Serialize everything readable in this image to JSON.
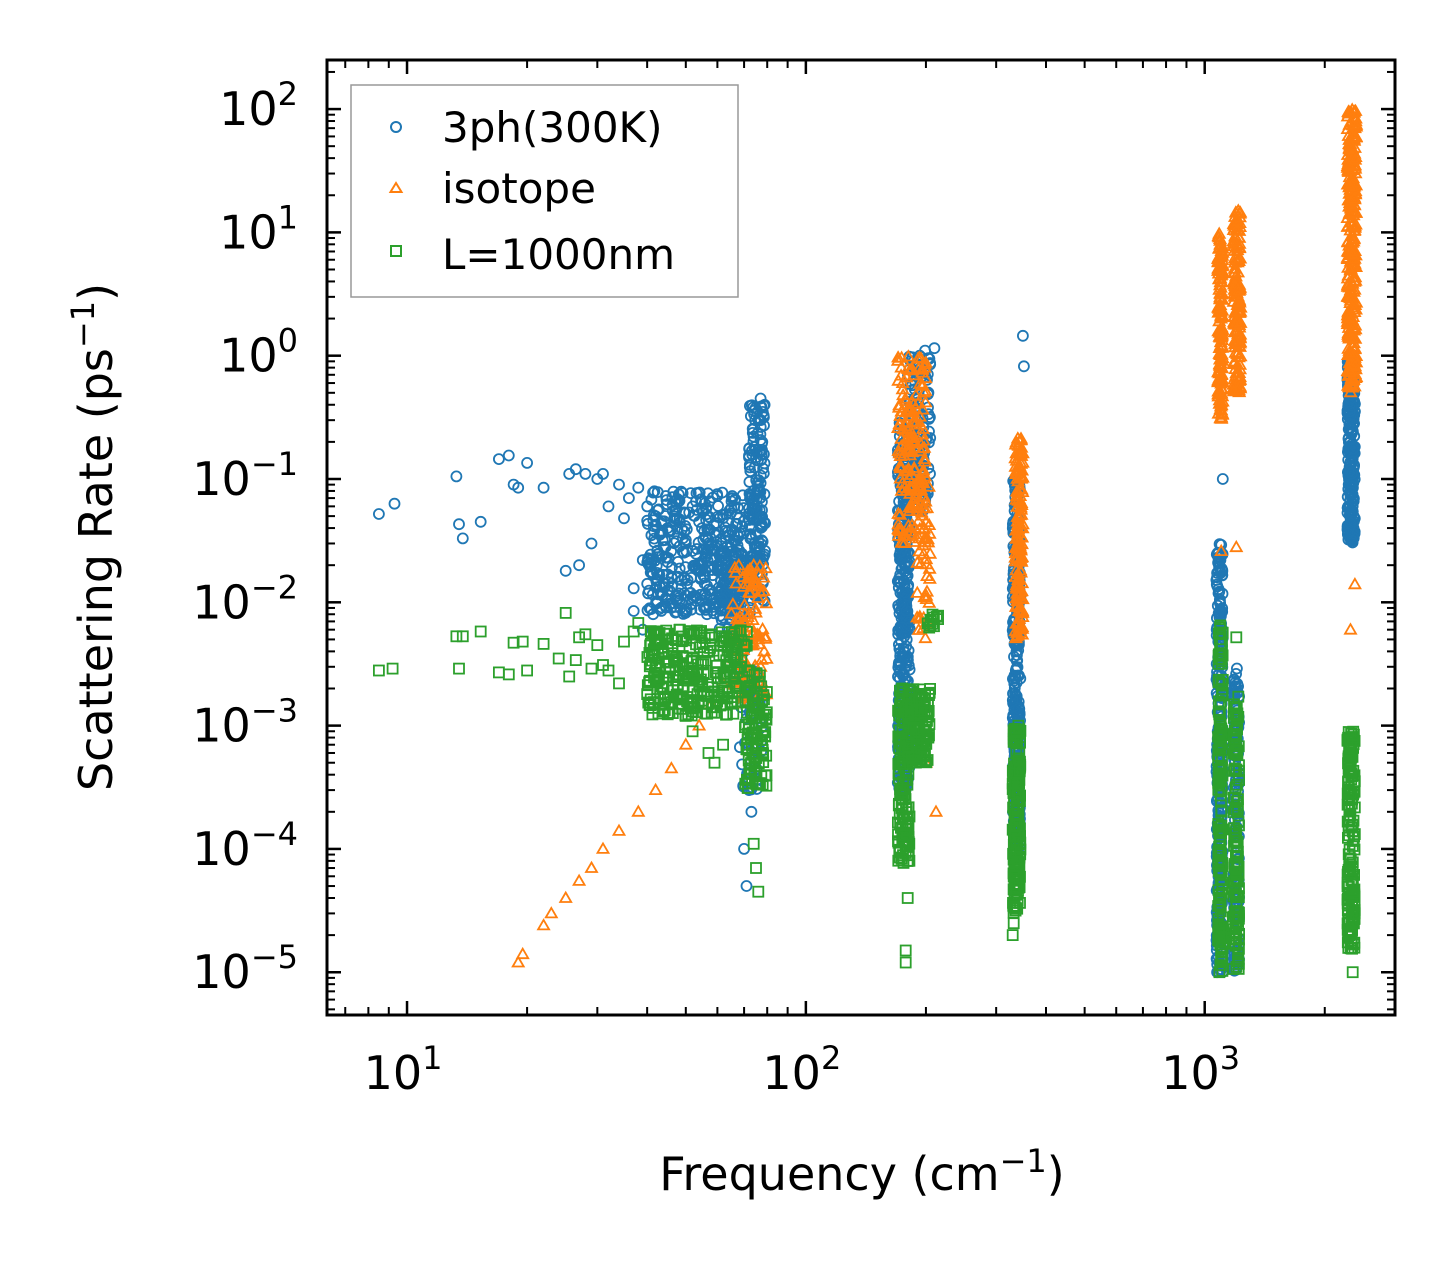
{
  "chart_data": {
    "type": "scatter",
    "xscale": "log",
    "yscale": "log",
    "xlim": [
      6.3,
      3000
    ],
    "ylim": [
      4.5e-06,
      250
    ],
    "xlabel": "Frequency (cm",
    "xlabel_sup": "−1",
    "xlabel_end": ")",
    "ylabel": "Scattering Rate (ps",
    "ylabel_sup": "−1",
    "ylabel_end": ")",
    "x_ticks": [
      {
        "value": 10,
        "base": "10",
        "exp": "1"
      },
      {
        "value": 100,
        "base": "10",
        "exp": "2"
      },
      {
        "value": 1000,
        "base": "10",
        "exp": "3"
      }
    ],
    "y_ticks": [
      {
        "value": 100,
        "base": "10",
        "exp": "2"
      },
      {
        "value": 10,
        "base": "10",
        "exp": "1"
      },
      {
        "value": 1,
        "base": "10",
        "exp": "0"
      },
      {
        "value": 0.1,
        "base": "10",
        "exp": "−1"
      },
      {
        "value": 0.01,
        "base": "10",
        "exp": "−2"
      },
      {
        "value": 0.001,
        "base": "10",
        "exp": "−3"
      },
      {
        "value": 0.0001,
        "base": "10",
        "exp": "−4"
      },
      {
        "value": 1e-05,
        "base": "10",
        "exp": "−5"
      }
    ],
    "legend_position": "top-left",
    "series": [
      {
        "name": "3ph(300K)",
        "marker": "circle",
        "color": "#1f77b4",
        "points": [
          [
            8.5,
            0.052
          ],
          [
            9.3,
            0.063
          ],
          [
            13.3,
            0.105
          ],
          [
            13.5,
            0.043
          ],
          [
            13.8,
            0.033
          ],
          [
            15.3,
            0.045
          ],
          [
            17,
            0.145
          ],
          [
            18,
            0.155
          ],
          [
            18.5,
            0.09
          ],
          [
            19,
            0.085
          ],
          [
            20,
            0.135
          ],
          [
            22,
            0.085
          ],
          [
            25,
            0.018
          ],
          [
            25.5,
            0.11
          ],
          [
            26.5,
            0.12
          ],
          [
            27,
            0.02
          ],
          [
            28,
            0.11
          ],
          [
            29,
            0.03
          ],
          [
            30,
            0.1
          ],
          [
            31,
            0.11
          ],
          [
            32,
            0.06
          ],
          [
            34,
            0.09
          ],
          [
            35,
            0.048
          ],
          [
            36,
            0.07
          ],
          [
            37,
            0.013
          ],
          [
            38,
            0.085
          ],
          [
            39,
            0.022
          ],
          [
            40,
            0.06
          ],
          [
            41,
            0.035
          ],
          [
            42,
            0.05
          ],
          [
            44,
            0.028
          ],
          [
            45,
            0.04
          ],
          [
            47,
            0.055
          ],
          [
            48,
            0.075
          ],
          [
            50,
            0.032
          ],
          [
            52,
            0.06
          ],
          [
            54,
            0.045
          ],
          [
            55,
            0.02
          ],
          [
            57,
            0.03
          ],
          [
            60,
            0.018
          ],
          [
            62,
            0.025
          ],
          [
            64,
            0.01
          ],
          [
            66,
            0.006
          ],
          [
            68,
            0.01
          ],
          [
            70,
            0.004
          ],
          [
            71,
            0.022
          ],
          [
            72,
            0.018
          ],
          [
            73,
            0.04
          ],
          [
            74,
            0.08
          ],
          [
            75,
            0.15
          ],
          [
            76,
            0.3
          ],
          [
            77,
            0.45
          ],
          [
            78,
            0.35
          ],
          [
            70,
            0.0001
          ],
          [
            71,
            5e-05
          ],
          [
            72,
            0.0003
          ],
          [
            73,
            0.0002
          ],
          [
            37,
            0.0085
          ],
          [
            39,
            0.006
          ],
          [
            199,
            1.1
          ],
          [
            205,
            0.85
          ],
          [
            210,
            1.15
          ],
          [
            350,
            1.45
          ],
          [
            352,
            0.82
          ],
          [
            1110,
            0.1
          ]
        ],
        "clusters": [
          {
            "x_min": 40,
            "x_max": 70,
            "y_min": 0.008,
            "y_max": 0.08,
            "n": 380
          },
          {
            "x_min": 60,
            "x_max": 73,
            "y_min": 0.006,
            "y_max": 0.025,
            "n": 90
          },
          {
            "x_min": 72,
            "x_max": 79,
            "y_min": 0.01,
            "y_max": 0.4,
            "n": 160
          },
          {
            "x_min": 68,
            "x_max": 78,
            "y_min": 0.0003,
            "y_max": 0.003,
            "n": 50
          },
          {
            "x_min": 170,
            "x_max": 182,
            "y_min": 0.0003,
            "y_max": 0.3,
            "n": 380
          },
          {
            "x_min": 180,
            "x_max": 205,
            "y_min": 0.05,
            "y_max": 1.0,
            "n": 120
          },
          {
            "x_min": 330,
            "x_max": 345,
            "y_min": 0.0001,
            "y_max": 0.1,
            "n": 280
          },
          {
            "x_min": 1070,
            "x_max": 1110,
            "y_min": 1e-05,
            "y_max": 0.03,
            "n": 280
          },
          {
            "x_min": 1180,
            "x_max": 1220,
            "y_min": 1e-05,
            "y_max": 0.003,
            "n": 140
          },
          {
            "x_min": 2280,
            "x_max": 2380,
            "y_min": 0.03,
            "y_max": 1.0,
            "n": 260
          }
        ]
      },
      {
        "name": "isotope",
        "marker": "triangle",
        "color": "#ff7f0e",
        "points": [
          [
            19,
            1.2e-05
          ],
          [
            19.5,
            1.4e-05
          ],
          [
            22,
            2.4e-05
          ],
          [
            23,
            3e-05
          ],
          [
            25,
            4e-05
          ],
          [
            27,
            5.5e-05
          ],
          [
            29,
            7e-05
          ],
          [
            31,
            0.0001
          ],
          [
            34,
            0.00014
          ],
          [
            38,
            0.0002
          ],
          [
            42,
            0.0003
          ],
          [
            46,
            0.00045
          ],
          [
            50,
            0.0007
          ],
          [
            54,
            0.001
          ],
          [
            58,
            0.0015
          ],
          [
            62,
            0.0022
          ],
          [
            66,
            0.0035
          ],
          [
            68,
            0.005
          ],
          [
            70,
            0.007
          ],
          [
            72,
            0.012
          ],
          [
            74,
            0.02
          ],
          [
            76,
            0.005
          ],
          [
            77,
            0.003
          ],
          [
            78,
            0.002
          ],
          [
            200,
            0.0005
          ],
          [
            212,
            0.0002
          ],
          [
            1100,
            0.026
          ],
          [
            1200,
            0.028
          ],
          [
            2320,
            0.006
          ],
          [
            2380,
            0.014
          ]
        ],
        "clusters": [
          {
            "x_min": 65,
            "x_max": 80,
            "y_min": 0.0015,
            "y_max": 0.02,
            "n": 110
          },
          {
            "x_min": 170,
            "x_max": 200,
            "y_min": 0.03,
            "y_max": 1.0,
            "n": 170
          },
          {
            "x_min": 190,
            "x_max": 205,
            "y_min": 0.005,
            "y_max": 0.1,
            "n": 40
          },
          {
            "x_min": 335,
            "x_max": 350,
            "y_min": 0.005,
            "y_max": 0.22,
            "n": 150
          },
          {
            "x_min": 1080,
            "x_max": 1110,
            "y_min": 0.3,
            "y_max": 10,
            "n": 150
          },
          {
            "x_min": 1180,
            "x_max": 1230,
            "y_min": 0.5,
            "y_max": 15,
            "n": 170
          },
          {
            "x_min": 2280,
            "x_max": 2400,
            "y_min": 0.5,
            "y_max": 100,
            "n": 300
          }
        ]
      },
      {
        "name": "L=1000nm",
        "marker": "square",
        "color": "#2ca02c",
        "points": [
          [
            8.5,
            0.0028
          ],
          [
            9.2,
            0.0029
          ],
          [
            13.3,
            0.0053
          ],
          [
            13.8,
            0.0053
          ],
          [
            13.5,
            0.0029
          ],
          [
            15.3,
            0.0058
          ],
          [
            17,
            0.0027
          ],
          [
            18,
            0.0026
          ],
          [
            18.5,
            0.0047
          ],
          [
            19.5,
            0.0048
          ],
          [
            20,
            0.0028
          ],
          [
            22,
            0.0046
          ],
          [
            24,
            0.0035
          ],
          [
            25,
            0.0082
          ],
          [
            25.5,
            0.0025
          ],
          [
            26.5,
            0.0034
          ],
          [
            27,
            0.0052
          ],
          [
            28,
            0.0055
          ],
          [
            29,
            0.0029
          ],
          [
            30,
            0.0045
          ],
          [
            31,
            0.0031
          ],
          [
            32,
            0.0028
          ],
          [
            34,
            0.0022
          ],
          [
            35,
            0.0048
          ],
          [
            37,
            0.0058
          ],
          [
            38,
            0.0068
          ],
          [
            40,
            0.0018
          ],
          [
            42,
            0.0032
          ],
          [
            45,
            0.0025
          ],
          [
            48,
            0.0015
          ],
          [
            50,
            0.0012
          ],
          [
            52,
            0.0009
          ],
          [
            55,
            0.0022
          ],
          [
            57,
            0.0006
          ],
          [
            59,
            0.0005
          ],
          [
            62,
            0.0007
          ],
          [
            74,
            0.00011
          ],
          [
            75,
            7e-05
          ],
          [
            76,
            4.5e-05
          ],
          [
            178,
            1.5e-05
          ],
          [
            178,
            1.2e-05
          ],
          [
            180,
            4e-05
          ],
          [
            330,
            2e-05
          ],
          [
            332,
            2.5e-05
          ],
          [
            1200,
            0.0052
          ],
          [
            2300,
            2.2e-05
          ],
          [
            2350,
            1e-05
          ]
        ],
        "clusters": [
          {
            "x_min": 40,
            "x_max": 72,
            "y_min": 0.0012,
            "y_max": 0.006,
            "n": 300
          },
          {
            "x_min": 70,
            "x_max": 80,
            "y_min": 0.0003,
            "y_max": 0.003,
            "n": 110
          },
          {
            "x_min": 170,
            "x_max": 182,
            "y_min": 7e-05,
            "y_max": 0.002,
            "n": 150
          },
          {
            "x_min": 180,
            "x_max": 205,
            "y_min": 0.0005,
            "y_max": 0.002,
            "n": 130
          },
          {
            "x_min": 200,
            "x_max": 215,
            "y_min": 0.006,
            "y_max": 0.008,
            "n": 12
          },
          {
            "x_min": 330,
            "x_max": 345,
            "y_min": 3e-05,
            "y_max": 0.001,
            "n": 180
          },
          {
            "x_min": 1080,
            "x_max": 1110,
            "y_min": 1e-05,
            "y_max": 0.007,
            "n": 160
          },
          {
            "x_min": 1180,
            "x_max": 1220,
            "y_min": 1e-05,
            "y_max": 0.0018,
            "n": 130
          },
          {
            "x_min": 2280,
            "x_max": 2380,
            "y_min": 1.5e-05,
            "y_max": 0.001,
            "n": 170
          }
        ]
      }
    ]
  }
}
